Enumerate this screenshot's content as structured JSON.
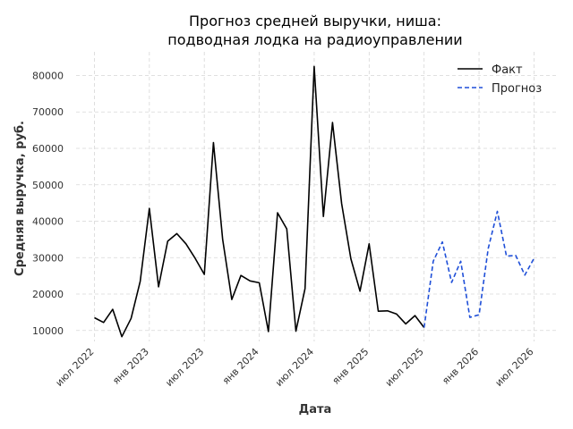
{
  "chart_data": {
    "type": "line",
    "title_line1": "Прогноз средней выручки, ниша:",
    "title_line2": "подводная лодка на радиоуправлении",
    "xlabel": "Дата",
    "ylabel": "Средняя выручка, руб.",
    "x_ticks": [
      {
        "label": "июл 2022",
        "month": 0
      },
      {
        "label": "янв 2023",
        "month": 6
      },
      {
        "label": "июл 2023",
        "month": 12
      },
      {
        "label": "янв 2024",
        "month": 18
      },
      {
        "label": "июл 2024",
        "month": 24
      },
      {
        "label": "янв 2025",
        "month": 30
      },
      {
        "label": "июл 2025",
        "month": 36
      },
      {
        "label": "янв 2026",
        "month": 42
      },
      {
        "label": "июл 2026",
        "month": 48
      }
    ],
    "y_ticks": [
      10000,
      20000,
      30000,
      40000,
      50000,
      60000,
      70000,
      80000
    ],
    "xlim": [
      -2,
      50.5
    ],
    "ylim": [
      7000,
      86500
    ],
    "grid": true,
    "legend_position": "top-right",
    "series": [
      {
        "name": "Факт",
        "style": "solid",
        "color": "#000000",
        "points": [
          [
            0,
            13500
          ],
          [
            1,
            12200
          ],
          [
            2,
            15800
          ],
          [
            3,
            8300
          ],
          [
            4,
            13300
          ],
          [
            5,
            23500
          ],
          [
            6,
            43500
          ],
          [
            7,
            22000
          ],
          [
            8,
            34500
          ],
          [
            9,
            36600
          ],
          [
            10,
            33800
          ],
          [
            11,
            29800
          ],
          [
            12,
            25400
          ],
          [
            13,
            61600
          ],
          [
            14,
            35000
          ],
          [
            15,
            18500
          ],
          [
            16,
            25100
          ],
          [
            17,
            23600
          ],
          [
            18,
            23100
          ],
          [
            19,
            9700
          ],
          [
            20,
            42300
          ],
          [
            21,
            37900
          ],
          [
            22,
            9800
          ],
          [
            23,
            21500
          ],
          [
            24,
            82500
          ],
          [
            25,
            41300
          ],
          [
            26,
            67100
          ],
          [
            27,
            44800
          ],
          [
            28,
            29700
          ],
          [
            29,
            20800
          ],
          [
            30,
            33800
          ],
          [
            31,
            15300
          ],
          [
            32,
            15400
          ],
          [
            33,
            14500
          ],
          [
            34,
            11800
          ],
          [
            35,
            14100
          ],
          [
            36,
            10800
          ]
        ]
      },
      {
        "name": "Прогноз",
        "style": "dashed",
        "color": "#1f4fd8",
        "points": [
          [
            36,
            10800
          ],
          [
            37,
            29000
          ],
          [
            38,
            34300
          ],
          [
            39,
            23200
          ],
          [
            40,
            29000
          ],
          [
            41,
            13600
          ],
          [
            42,
            14300
          ],
          [
            43,
            32500
          ],
          [
            44,
            42700
          ],
          [
            45,
            30400
          ],
          [
            46,
            30600
          ],
          [
            47,
            25200
          ],
          [
            48,
            29800
          ]
        ]
      }
    ]
  }
}
